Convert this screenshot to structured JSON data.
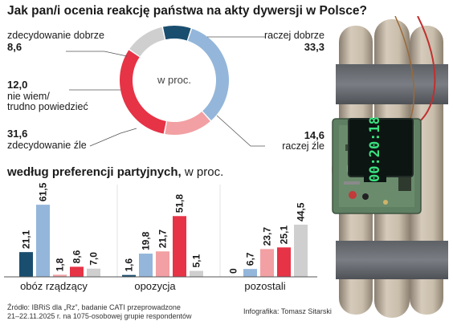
{
  "title": "Jak pan/i ocenia reakcję państwa na akty dywersji w Polsce?",
  "donut": {
    "center_label": "w proc.",
    "segments": [
      {
        "label": "raczej dobrze",
        "value": 33.3,
        "value_text": "33,3",
        "color": "#94b6da"
      },
      {
        "label": "raczej źle",
        "value": 14.6,
        "value_text": "14,6",
        "color": "#f2a0a3"
      },
      {
        "label": "zdecydowanie źle",
        "value": 31.6,
        "value_text": "31,6",
        "color": "#e63346"
      },
      {
        "label_lines": [
          "nie wiem/",
          "trudno powiedzieć"
        ],
        "value": 12.0,
        "value_text": "12,0",
        "color": "#cfcfcf"
      },
      {
        "label": "zdecydowanie dobrze",
        "value": 8.6,
        "value_text": "8,6",
        "color": "#1a4e6e"
      }
    ]
  },
  "section2": {
    "bold": "według preferencji partyjnych,",
    "unit": "w proc."
  },
  "chart_data": {
    "type": "bar",
    "categories": [
      "obóz rządzący",
      "opozycja",
      "pozostali"
    ],
    "series": [
      {
        "color": "#1a4e6e",
        "values": [
          21.1,
          1.6,
          0
        ],
        "labels": [
          "21,1",
          "1,6",
          "0"
        ]
      },
      {
        "color": "#94b6da",
        "values": [
          61.5,
          19.8,
          6.7
        ],
        "labels": [
          "61,5",
          "19,8",
          "6,7"
        ]
      },
      {
        "color": "#f2a0a3",
        "values": [
          1.8,
          21.7,
          23.7
        ],
        "labels": [
          "1,8",
          "21,7",
          "23,7"
        ]
      },
      {
        "color": "#e63346",
        "values": [
          8.6,
          51.8,
          25.1
        ],
        "labels": [
          "8,6",
          "51,8",
          "25,1"
        ]
      },
      {
        "color": "#cfcfcf",
        "values": [
          7.0,
          5.1,
          44.5
        ],
        "labels": [
          "7,0",
          "5,1",
          "44,5"
        ]
      }
    ]
  },
  "timer": {
    "display": "00:20:18"
  },
  "source_lines": [
    "Źródło: IBRiS dla „Rz”, badanie CATI przeprowadzone",
    "21–22.11.2025 r. na 1075-osobowej grupie respondentów"
  ],
  "credit": "Infografika: Tomasz Sitarski",
  "colors": {
    "navy": "#1a4e6e",
    "lightblue": "#94b6da",
    "pink": "#f2a0a3",
    "red": "#e63346",
    "grey": "#cfcfcf"
  }
}
